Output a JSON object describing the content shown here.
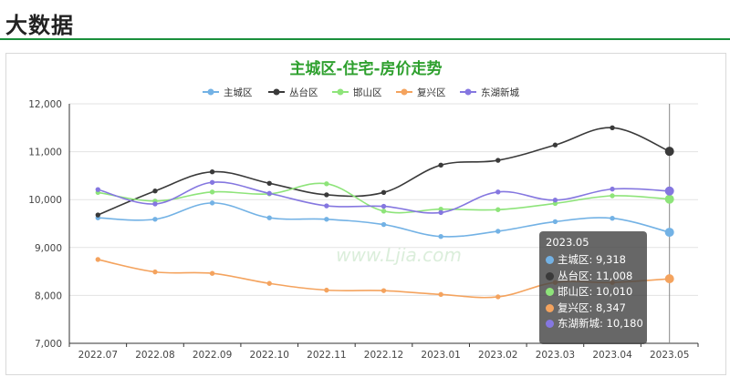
{
  "page": {
    "title": "大数据"
  },
  "colors": {
    "header_line": "#1a8f3c",
    "title": "#2ea02e",
    "watermark": "#dbeedb"
  },
  "watermark": {
    "text": "www.Ljia.com"
  },
  "chart_data": {
    "type": "line",
    "title": "主城区-住宅-房价走势",
    "categories": [
      "2022.07",
      "2022.08",
      "2022.09",
      "2022.10",
      "2022.11",
      "2022.12",
      "2023.01",
      "2023.02",
      "2023.03",
      "2023.04",
      "2023.05"
    ],
    "ylim": [
      7000,
      12000
    ],
    "yticks": [
      7000,
      8000,
      9000,
      10000,
      11000,
      12000
    ],
    "ytick_labels": [
      "7,000",
      "8,000",
      "9,000",
      "10,000",
      "11,000",
      "12,000"
    ],
    "grid": true,
    "legend_position": "top-center",
    "series": [
      {
        "name": "主城区",
        "color": "#73b2e5",
        "values": [
          9620,
          9590,
          9930,
          9620,
          9590,
          9480,
          9230,
          9340,
          9540,
          9610,
          9318
        ]
      },
      {
        "name": "丛台区",
        "color": "#3a3a3a",
        "values": [
          9680,
          10180,
          10580,
          10340,
          10100,
          10150,
          10720,
          10820,
          11140,
          11500,
          11008
        ]
      },
      {
        "name": "邯山区",
        "color": "#8ee47a",
        "values": [
          10150,
          9970,
          10160,
          10120,
          10330,
          9760,
          9800,
          9790,
          9920,
          10080,
          10010
        ]
      },
      {
        "name": "复兴区",
        "color": "#f4a35e",
        "values": [
          8750,
          8490,
          8460,
          8250,
          8110,
          8100,
          8020,
          7970,
          8270,
          8270,
          8347
        ]
      },
      {
        "name": "东湖新城",
        "color": "#8577e0",
        "values": [
          10210,
          9910,
          10360,
          10130,
          9870,
          9860,
          9730,
          10160,
          9990,
          10220,
          10180
        ]
      }
    ],
    "tooltip": {
      "title": "2023.05",
      "rows": [
        {
          "label": "主城区: 9,318",
          "color": "#73b2e5"
        },
        {
          "label": "丛台区: 11,008",
          "color": "#3a3a3a"
        },
        {
          "label": "邯山区: 10,010",
          "color": "#8ee47a"
        },
        {
          "label": "复兴区: 8,347",
          "color": "#f4a35e"
        },
        {
          "label": "东湖新城: 10,180",
          "color": "#8577e0"
        }
      ]
    }
  }
}
